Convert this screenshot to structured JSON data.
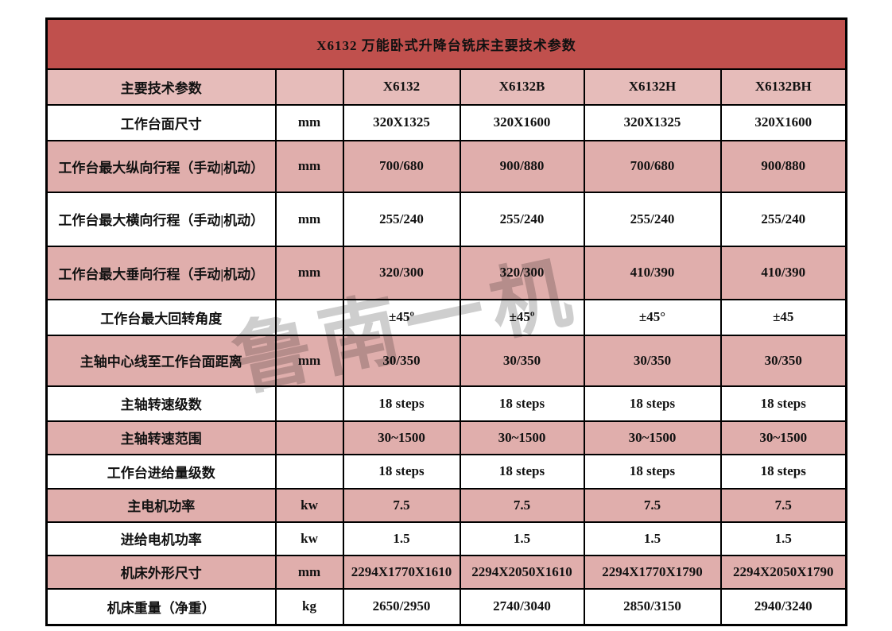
{
  "page": {
    "title_bar": "X6132 万能卧式升降台铣床主要技术参数",
    "watermark": "鲁南一机"
  },
  "colors": {
    "title_bg": "#C0504D",
    "header_row_bg": "#E6BCBA",
    "band_row_bg": "#E0AEAC",
    "highlight_blue": "#1414EE",
    "border": "#000000",
    "title_text": "#FFFFFF"
  },
  "table": {
    "header_row": {
      "label": "主要技术参数",
      "unit": "",
      "models": [
        "X6132",
        "X6132B",
        "X6132H",
        "X6132BH"
      ]
    },
    "rows": [
      {
        "label": "工作台面尺寸",
        "unit": "mm",
        "values": [
          "320X1325",
          "320X1600",
          "320X1325",
          "320X1600"
        ],
        "blue": []
      },
      {
        "label": "工作台最大纵向行程（手动|机动）",
        "unit": "mm",
        "values": [
          "700/680",
          "900/880",
          "700/680",
          "900/880"
        ],
        "blue": [
          1,
          3
        ]
      },
      {
        "label": "工作台最大横向行程（手动|机动）",
        "unit": "mm",
        "values": [
          "255/240",
          "255/240",
          "255/240",
          "255/240"
        ],
        "blue": []
      },
      {
        "label": "工作台最大垂向行程（手动|机动）",
        "unit": "mm",
        "values": [
          "320/300",
          "320/300",
          "410/390",
          "410/390"
        ],
        "blue": [
          2,
          3
        ]
      },
      {
        "label": "工作台最大回转角度",
        "unit": "",
        "values": [
          "±45º",
          "±45º",
          "±45°",
          "±45"
        ],
        "blue": []
      },
      {
        "label": "主轴中心线至工作台面距离",
        "unit": "mm",
        "values": [
          "30/350",
          "30/350",
          "30/350",
          "30/350"
        ],
        "blue": []
      },
      {
        "label": "主轴转速级数",
        "unit": "",
        "values": [
          "18 steps",
          "18 steps",
          "18 steps",
          "18 steps"
        ],
        "blue": []
      },
      {
        "label": "主轴转速范围",
        "unit": "",
        "values": [
          "30~1500",
          "30~1500",
          "30~1500",
          "30~1500"
        ],
        "blue": []
      },
      {
        "label": "工作台进给量级数",
        "unit": "",
        "values": [
          "18 steps",
          "18 steps",
          "18 steps",
          "18 steps"
        ],
        "blue": []
      },
      {
        "label": "主电机功率",
        "unit": "kw",
        "values": [
          "7.5",
          "7.5",
          "7.5",
          "7.5"
        ],
        "blue": []
      },
      {
        "label": "进给电机功率",
        "unit": "kw",
        "values": [
          "1.5",
          "1.5",
          "1.5",
          "1.5"
        ],
        "blue": []
      },
      {
        "label": "机床外形尺寸",
        "unit": "mm",
        "values": [
          "2294X1770X1610",
          "2294X2050X1610",
          "2294X1770X1790",
          "2294X2050X1790"
        ],
        "blue": []
      },
      {
        "label": "机床重量（净重）",
        "unit": "kg",
        "values": [
          "2650/2950",
          "2740/3040",
          "2850/3150",
          "2940/3240"
        ],
        "blue": []
      }
    ]
  }
}
